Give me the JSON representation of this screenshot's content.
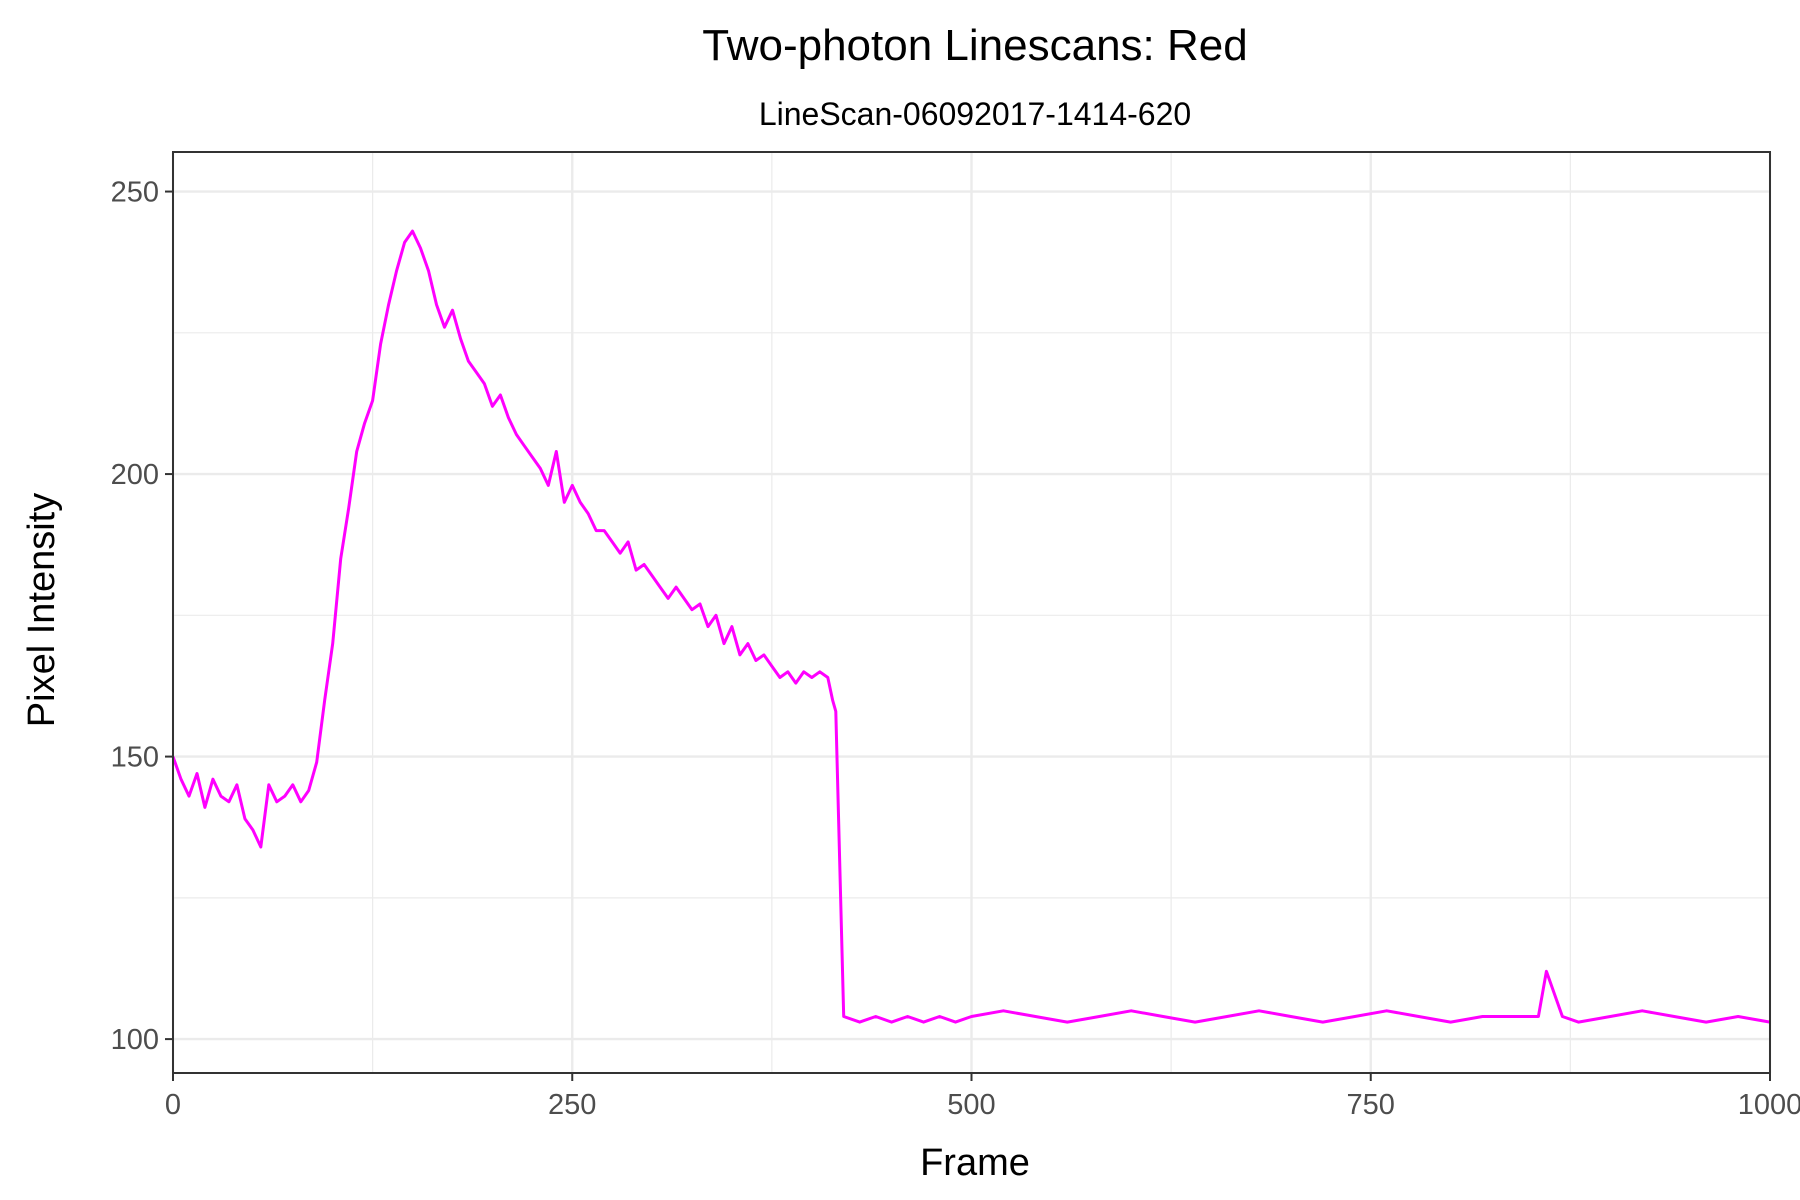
{
  "chart_data": {
    "type": "line",
    "title": "Two-photon Linescans: Red",
    "subtitle": "LineScan-06092017-1414-620",
    "xlabel": "Frame",
    "ylabel": "Pixel Intensity",
    "xlim": [
      0,
      1000
    ],
    "ylim": [
      94,
      257
    ],
    "x_ticks": [
      0,
      250,
      500,
      750,
      1000
    ],
    "y_ticks": [
      100,
      150,
      200,
      250
    ],
    "grid": true,
    "legend": "none",
    "line_color": "#FF00FF",
    "series": [
      {
        "x": [
          0,
          5,
          10,
          15,
          20,
          25,
          30,
          35,
          40,
          45,
          50,
          55,
          60,
          65,
          70,
          75,
          80,
          85,
          90,
          95,
          100,
          105,
          110,
          115,
          120,
          125,
          130,
          135,
          140,
          145,
          150,
          155,
          160,
          165,
          170,
          175,
          180,
          185,
          190,
          195,
          200,
          205,
          210,
          215,
          220,
          225,
          230,
          235,
          240,
          245,
          250,
          255,
          260,
          265,
          270,
          275,
          280,
          285,
          290,
          295,
          300,
          305,
          310,
          315,
          320,
          325,
          330,
          335,
          340,
          345,
          350,
          355,
          360,
          365,
          370,
          375,
          380,
          385,
          390,
          395,
          400,
          405,
          410,
          413,
          415,
          420,
          430,
          440,
          450,
          460,
          470,
          480,
          490,
          500,
          520,
          540,
          560,
          580,
          600,
          620,
          640,
          660,
          680,
          700,
          720,
          740,
          760,
          780,
          800,
          820,
          840,
          855,
          860,
          870,
          880,
          900,
          920,
          940,
          960,
          980,
          1000
        ],
        "values": [
          150,
          146,
          143,
          147,
          141,
          146,
          143,
          142,
          145,
          139,
          137,
          134,
          145,
          142,
          143,
          145,
          142,
          144,
          149,
          160,
          170,
          185,
          194,
          204,
          209,
          213,
          223,
          230,
          236,
          241,
          243,
          240,
          236,
          230,
          226,
          229,
          224,
          220,
          218,
          216,
          212,
          214,
          210,
          207,
          205,
          203,
          201,
          198,
          204,
          195,
          198,
          195,
          193,
          190,
          190,
          188,
          186,
          188,
          183,
          184,
          182,
          180,
          178,
          180,
          178,
          176,
          177,
          173,
          175,
          170,
          173,
          168,
          170,
          167,
          168,
          166,
          164,
          165,
          163,
          165,
          164,
          165,
          164,
          160,
          158,
          104,
          103,
          104,
          103,
          104,
          103,
          104,
          103,
          104,
          105,
          104,
          103,
          104,
          105,
          104,
          103,
          104,
          105,
          104,
          103,
          104,
          105,
          104,
          103,
          104,
          104,
          104,
          112,
          104,
          103,
          104,
          105,
          104,
          103,
          104,
          103
        ]
      }
    ]
  }
}
